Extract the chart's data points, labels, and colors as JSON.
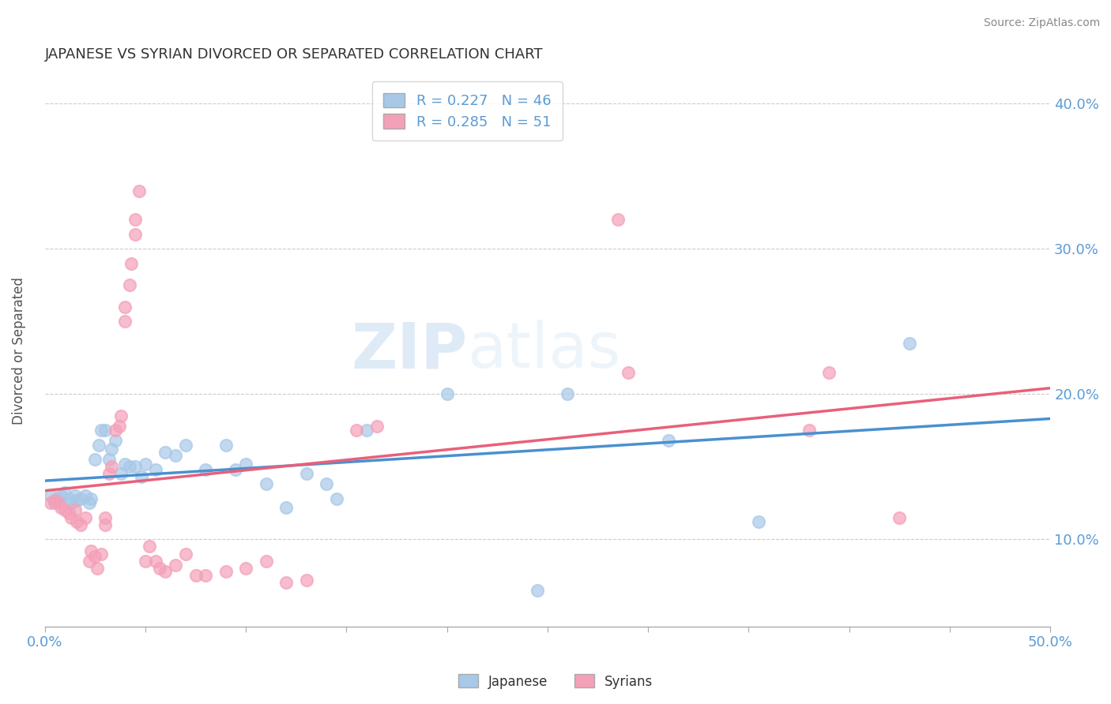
{
  "title": "JAPANESE VS SYRIAN DIVORCED OR SEPARATED CORRELATION CHART",
  "source": "Source: ZipAtlas.com",
  "ylabel": "Divorced or Separated",
  "xlim": [
    0.0,
    0.5
  ],
  "ylim": [
    0.04,
    0.42
  ],
  "xtick_positions": [
    0.0,
    0.05,
    0.1,
    0.15,
    0.2,
    0.25,
    0.3,
    0.35,
    0.4,
    0.45,
    0.5
  ],
  "ytick_positions": [
    0.1,
    0.2,
    0.3,
    0.4
  ],
  "legend_japanese": "R = 0.227   N = 46",
  "legend_syrian": "R = 0.285   N = 51",
  "japanese_color": "#a8c8e8",
  "syrian_color": "#f4a0b8",
  "japanese_line_color": "#4a90d0",
  "syrian_line_color": "#e8607a",
  "watermark_zip": "ZIP",
  "watermark_atlas": "atlas",
  "japanese_points": [
    [
      0.003,
      0.13
    ],
    [
      0.005,
      0.125
    ],
    [
      0.006,
      0.128
    ],
    [
      0.008,
      0.13
    ],
    [
      0.01,
      0.132
    ],
    [
      0.012,
      0.128
    ],
    [
      0.013,
      0.125
    ],
    [
      0.015,
      0.13
    ],
    [
      0.016,
      0.127
    ],
    [
      0.018,
      0.128
    ],
    [
      0.02,
      0.13
    ],
    [
      0.022,
      0.125
    ],
    [
      0.023,
      0.128
    ],
    [
      0.025,
      0.155
    ],
    [
      0.027,
      0.165
    ],
    [
      0.028,
      0.175
    ],
    [
      0.03,
      0.175
    ],
    [
      0.032,
      0.155
    ],
    [
      0.033,
      0.162
    ],
    [
      0.035,
      0.168
    ],
    [
      0.038,
      0.145
    ],
    [
      0.04,
      0.152
    ],
    [
      0.042,
      0.15
    ],
    [
      0.045,
      0.15
    ],
    [
      0.048,
      0.143
    ],
    [
      0.05,
      0.152
    ],
    [
      0.055,
      0.148
    ],
    [
      0.06,
      0.16
    ],
    [
      0.065,
      0.158
    ],
    [
      0.07,
      0.165
    ],
    [
      0.08,
      0.148
    ],
    [
      0.09,
      0.165
    ],
    [
      0.095,
      0.148
    ],
    [
      0.1,
      0.152
    ],
    [
      0.11,
      0.138
    ],
    [
      0.12,
      0.122
    ],
    [
      0.13,
      0.145
    ],
    [
      0.14,
      0.138
    ],
    [
      0.145,
      0.128
    ],
    [
      0.16,
      0.175
    ],
    [
      0.2,
      0.2
    ],
    [
      0.26,
      0.2
    ],
    [
      0.31,
      0.168
    ],
    [
      0.355,
      0.112
    ],
    [
      0.43,
      0.235
    ],
    [
      0.245,
      0.065
    ]
  ],
  "syrian_points": [
    [
      0.003,
      0.125
    ],
    [
      0.005,
      0.127
    ],
    [
      0.007,
      0.125
    ],
    [
      0.008,
      0.122
    ],
    [
      0.01,
      0.12
    ],
    [
      0.012,
      0.118
    ],
    [
      0.013,
      0.115
    ],
    [
      0.015,
      0.12
    ],
    [
      0.016,
      0.112
    ],
    [
      0.018,
      0.11
    ],
    [
      0.02,
      0.115
    ],
    [
      0.022,
      0.085
    ],
    [
      0.023,
      0.092
    ],
    [
      0.025,
      0.088
    ],
    [
      0.026,
      0.08
    ],
    [
      0.028,
      0.09
    ],
    [
      0.03,
      0.115
    ],
    [
      0.03,
      0.11
    ],
    [
      0.032,
      0.145
    ],
    [
      0.033,
      0.15
    ],
    [
      0.035,
      0.175
    ],
    [
      0.037,
      0.178
    ],
    [
      0.038,
      0.185
    ],
    [
      0.04,
      0.25
    ],
    [
      0.04,
      0.26
    ],
    [
      0.042,
      0.275
    ],
    [
      0.043,
      0.29
    ],
    [
      0.045,
      0.31
    ],
    [
      0.045,
      0.32
    ],
    [
      0.047,
      0.34
    ],
    [
      0.05,
      0.085
    ],
    [
      0.052,
      0.095
    ],
    [
      0.055,
      0.085
    ],
    [
      0.057,
      0.08
    ],
    [
      0.06,
      0.078
    ],
    [
      0.065,
      0.082
    ],
    [
      0.07,
      0.09
    ],
    [
      0.075,
      0.075
    ],
    [
      0.08,
      0.075
    ],
    [
      0.09,
      0.078
    ],
    [
      0.1,
      0.08
    ],
    [
      0.11,
      0.085
    ],
    [
      0.12,
      0.07
    ],
    [
      0.13,
      0.072
    ],
    [
      0.155,
      0.175
    ],
    [
      0.165,
      0.178
    ],
    [
      0.285,
      0.32
    ],
    [
      0.38,
      0.175
    ],
    [
      0.39,
      0.215
    ],
    [
      0.425,
      0.115
    ],
    [
      0.29,
      0.215
    ]
  ]
}
